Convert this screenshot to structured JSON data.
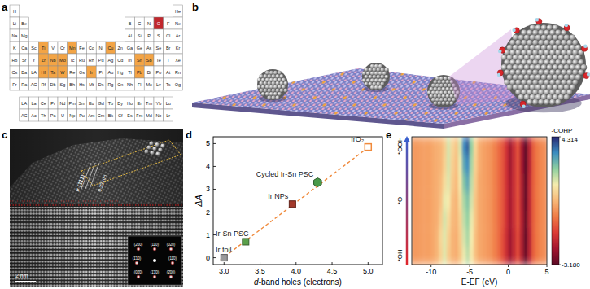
{
  "panels": [
    "a",
    "b",
    "c",
    "d",
    "e"
  ],
  "periodic_table": {
    "rows": [
      [
        "H",
        null,
        null,
        null,
        null,
        null,
        null,
        null,
        null,
        null,
        null,
        null,
        null,
        null,
        null,
        null,
        null,
        "He"
      ],
      [
        "Li",
        "Be",
        null,
        null,
        null,
        null,
        null,
        null,
        null,
        null,
        null,
        null,
        "B",
        "C",
        "N",
        "O",
        "F",
        "Ne"
      ],
      [
        "Na",
        "Mg",
        null,
        null,
        null,
        null,
        null,
        null,
        null,
        null,
        null,
        null,
        "Al",
        "Si",
        "P",
        "S",
        "Cl",
        "Ar"
      ],
      [
        "K",
        "Ca",
        "Sc",
        "Ti",
        "V",
        "Cr",
        "Mn",
        "Fe",
        "Co",
        "Ni",
        "Cu",
        "Zn",
        "Ga",
        "Ge",
        "As",
        "Se",
        "Br",
        "Kr"
      ],
      [
        "Rb",
        "Sr",
        "Y",
        "Zr",
        "Nb",
        "Mo",
        "Tc",
        "Ru",
        "Rh",
        "Pd",
        "Ag",
        "Cd",
        "In",
        "Sn",
        "Sb",
        "Te",
        "I",
        "Xe"
      ],
      [
        "Cs",
        "Ba",
        "LA",
        "Hf",
        "Ta",
        "W",
        "Re",
        "Os",
        "Ir",
        "Pt",
        "Au",
        "Hg",
        "Tl",
        "Pb",
        "Bi",
        "Po",
        "At",
        "Rn"
      ],
      [
        "Fr",
        "Ra",
        "AC",
        "Rf",
        "Db",
        "Sg",
        "Bh",
        "Hs",
        "Mt",
        "Ds",
        "Rg",
        "Cn",
        "Nh",
        "Fl",
        "Mc",
        "Lv",
        "Ts",
        "Og"
      ]
    ],
    "f_block": [
      {
        "label": "LA",
        "elements": [
          "La",
          "Ce",
          "Pr",
          "Nd",
          "Pm",
          "Sm",
          "Eu",
          "Gd",
          "Tb",
          "Dy",
          "Ho",
          "Er",
          "Tm",
          "Yb",
          "Lu"
        ]
      },
      {
        "label": "AC",
        "elements": [
          "Ac",
          "Th",
          "Pa",
          "U",
          "Np",
          "Pu",
          "Am",
          "Cm",
          "Bk",
          "Cf",
          "Es",
          "Fm",
          "Md",
          "No",
          "Lr"
        ]
      }
    ],
    "highlighted": {
      "elements": [
        "Ti",
        "Mn",
        "Cu",
        "Zr",
        "Nb",
        "Mo",
        "Sn",
        "Sb",
        "Hf",
        "Ta",
        "W",
        "Ir",
        "Pb"
      ],
      "color": "#f3a445"
    },
    "selected": {
      "elements": [
        "O"
      ],
      "color": "#c1272d"
    }
  },
  "tem_image": {
    "labels": {
      "plane": "Ir (111)",
      "spacing": "0.23 nm",
      "scale_bar": "2 nm"
    },
    "fft_spots": [
      "(200)",
      "(110)",
      "(020)",
      "(1̄10)",
      "(11̄0)",
      "(02̄0)",
      "(1̄1̄0)",
      "(2̄00)"
    ]
  },
  "chart_data": [
    {
      "type": "scatter",
      "xlabel": "d-band holes (electrons)",
      "ylabel": "ΔA",
      "xlim": [
        2.85,
        5.2
      ],
      "ylim": [
        -0.3,
        5.3
      ],
      "xticks": [
        {
          "value": 3,
          "label": "3.0"
        },
        {
          "value": 3.5,
          "label": "3.5"
        },
        {
          "value": 4,
          "label": "4.0"
        },
        {
          "value": 4.5,
          "label": "4.5"
        },
        {
          "value": 5,
          "label": "5.0"
        }
      ],
      "yticks": [
        0,
        1,
        2,
        3,
        4,
        5
      ],
      "series": [
        {
          "type": "line",
          "line_style": "dashed",
          "color": "#f08a3c",
          "x": [
            2.95,
            5.05
          ],
          "values": [
            -0.1,
            4.95
          ]
        },
        {
          "name": "Ir foil",
          "color": "#9a9a9a",
          "marker": "square",
          "x": [
            3.0
          ],
          "values": [
            0
          ]
        },
        {
          "name": "Ir-Sn PSC",
          "color": "#5aa04a",
          "marker": "square",
          "x": [
            3.3
          ],
          "values": [
            0.7
          ]
        },
        {
          "name": "Ir NPs",
          "color": "#a3392b",
          "marker": "square",
          "x": [
            3.95
          ],
          "values": [
            2.35
          ]
        },
        {
          "name": "Cycled Ir-Sn PSC",
          "color": "#4a9a4a",
          "marker": "hexagon",
          "x": [
            4.3
          ],
          "values": [
            3.3
          ]
        },
        {
          "name": "IrO₂",
          "color": "#f08a3c",
          "marker": "square-open",
          "x": [
            5.0
          ],
          "values": [
            4.85
          ]
        }
      ]
    },
    {
      "type": "heatmap",
      "xlabel": "E-EF (eV)",
      "xlim": [
        -12.5,
        5
      ],
      "xticks": [
        -10,
        -5,
        0,
        5
      ],
      "x": [
        -12.25,
        -11.75,
        -11.25,
        -10.75,
        -10.25,
        -9.75,
        -9.25,
        -8.75,
        -8.25,
        -7.75,
        -7.25,
        -6.75,
        -6.25,
        -5.75,
        -5.25,
        -4.75,
        -4.25,
        -3.75,
        -3.25,
        -2.75,
        -2.25,
        -1.75,
        -1.25,
        -0.75,
        -0.25,
        0.25,
        0.75,
        1.25,
        1.75,
        2.25,
        2.75,
        3.25,
        3.75,
        4.25,
        4.75
      ],
      "y": [
        "*OH",
        null,
        null,
        "*O",
        null,
        null,
        "*OOH"
      ],
      "values": [
        [
          0.1,
          0.1,
          0.15,
          0.2,
          0.2,
          0.3,
          0.5,
          1.0,
          1.7,
          0.9,
          0.5,
          0.4,
          0.8,
          1.6,
          2.0,
          1.4,
          0.7,
          0.3,
          0.2,
          0.1,
          0.0,
          -0.3,
          -0.6,
          -1.0,
          -1.6,
          -2.3,
          -1.7,
          -1.1,
          -2.1,
          -3.0,
          -1.9,
          -0.8,
          -0.4,
          -0.2,
          -0.1
        ],
        [
          0.1,
          0.1,
          0.15,
          0.2,
          0.2,
          0.3,
          0.5,
          1.1,
          1.7,
          1.0,
          0.5,
          0.4,
          0.9,
          1.8,
          2.2,
          1.5,
          0.7,
          0.3,
          0.2,
          0.1,
          0.0,
          -0.3,
          -0.6,
          -1.0,
          -1.6,
          -2.3,
          -1.7,
          -1.1,
          -2.1,
          -3.1,
          -1.9,
          -0.8,
          -0.4,
          -0.2,
          -0.1
        ],
        [
          0.1,
          0.1,
          0.15,
          0.2,
          0.2,
          0.3,
          0.4,
          0.9,
          1.8,
          1.2,
          0.6,
          0.5,
          1.0,
          2.0,
          2.4,
          1.6,
          0.8,
          0.3,
          0.2,
          0.1,
          0.0,
          -0.3,
          -0.6,
          -0.9,
          -1.5,
          -2.2,
          -1.6,
          -1.0,
          -2.0,
          -3.0,
          -1.8,
          -0.8,
          -0.4,
          -0.2,
          -0.1
        ],
        [
          0.1,
          0.1,
          0.15,
          0.2,
          0.2,
          0.3,
          0.4,
          0.7,
          1.6,
          1.5,
          0.7,
          0.5,
          1.2,
          2.2,
          2.6,
          1.8,
          0.8,
          0.3,
          0.2,
          0.1,
          0.0,
          -0.3,
          -0.6,
          -0.9,
          -1.5,
          -2.2,
          -1.6,
          -1.0,
          -2.1,
          -3.1,
          -1.8,
          -0.8,
          -0.4,
          -0.2,
          -0.1
        ],
        [
          0.1,
          0.1,
          0.15,
          0.2,
          0.2,
          0.3,
          0.4,
          0.6,
          1.2,
          1.7,
          0.9,
          0.6,
          1.4,
          2.6,
          3.0,
          2.0,
          0.9,
          0.3,
          0.2,
          0.1,
          0.0,
          -0.3,
          -0.6,
          -0.9,
          -1.5,
          -2.2,
          -1.6,
          -1.0,
          -2.1,
          -3.1,
          -1.8,
          -0.8,
          -0.4,
          -0.2,
          -0.1
        ],
        [
          0.1,
          0.1,
          0.15,
          0.2,
          0.2,
          0.3,
          0.4,
          0.5,
          1.0,
          1.8,
          1.0,
          0.7,
          1.6,
          3.0,
          3.4,
          2.2,
          1.0,
          0.4,
          0.2,
          0.1,
          0.0,
          -0.3,
          -0.6,
          -0.9,
          -1.5,
          -2.3,
          -1.6,
          -1.0,
          -2.2,
          -3.2,
          -1.9,
          -0.8,
          -0.4,
          -0.2,
          -0.1
        ],
        [
          0.1,
          0.1,
          0.15,
          0.2,
          0.2,
          0.3,
          0.4,
          0.5,
          0.9,
          1.8,
          1.1,
          0.8,
          1.8,
          3.4,
          3.8,
          2.4,
          1.1,
          0.4,
          0.2,
          0.1,
          0.0,
          -0.3,
          -0.6,
          -0.9,
          -1.5,
          -2.3,
          -1.6,
          -1.0,
          -2.2,
          -3.2,
          -1.9,
          -0.8,
          -0.4,
          -0.2,
          -0.1
        ]
      ],
      "colorbar": {
        "label": "-COHP",
        "range": [
          -3.18,
          4.314
        ],
        "ticks": [
          4.314,
          {
            "value": -3.18,
            "label": "-3.180"
          }
        ],
        "colors": [
          "#5c0a25",
          "#a3152f",
          "#dc3b36",
          "#f07b45",
          "#f8b878",
          "#f5ecae",
          "#8fd0a0",
          "#3a8cc0",
          "#272670"
        ]
      }
    }
  ]
}
